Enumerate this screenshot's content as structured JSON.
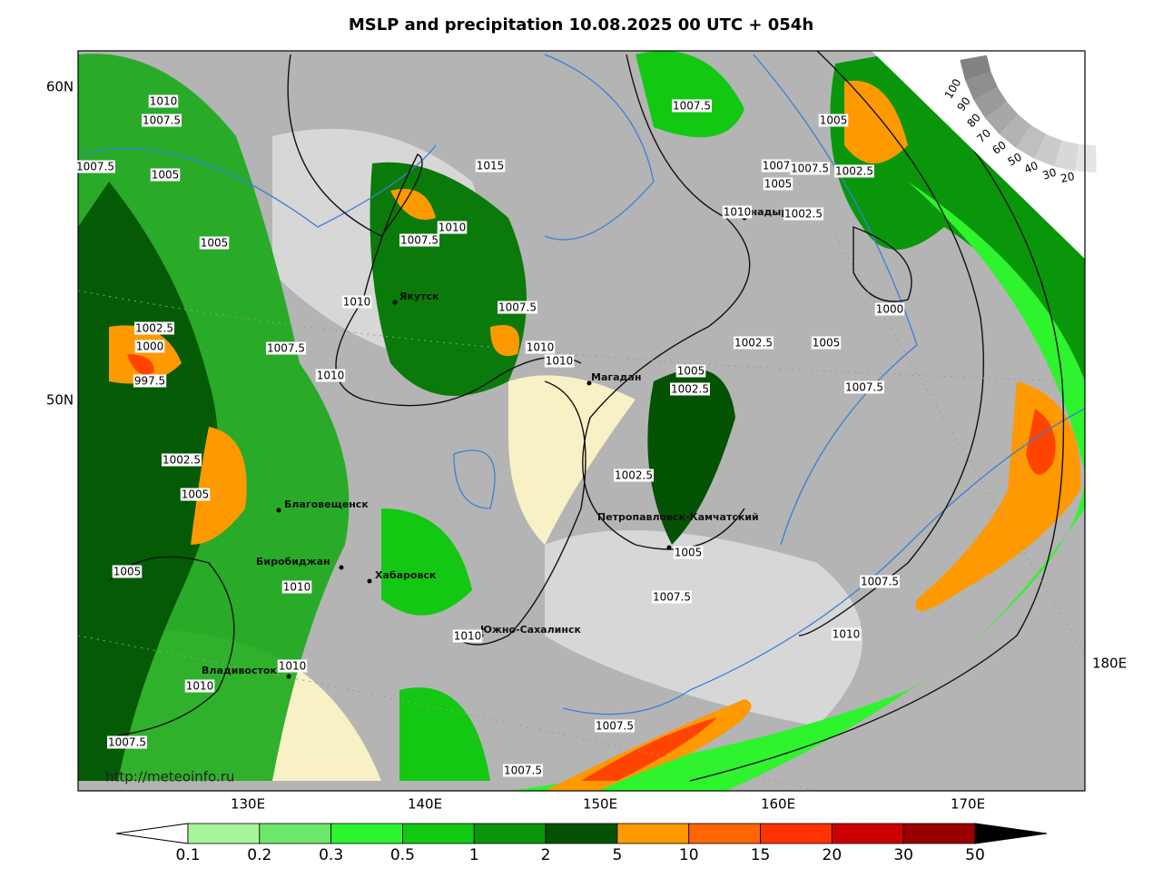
{
  "title": "MSLP and precipitation 10.08.2025 00 UTC + 054h",
  "lat_labels": [
    "60N",
    "50N"
  ],
  "lon_labels": [
    "130E",
    "140E",
    "150E",
    "160E",
    "170E",
    "180E"
  ],
  "cities": [
    "Якутск",
    "Магадан",
    "Анадырь",
    "Благовещенск",
    "Биробиджан",
    "Хабаровск",
    "Владивосток",
    "Южно-Сахалинск",
    "Петропавловск-Камчатский"
  ],
  "isobar_labels": [
    1010,
    1007.5,
    1007.5,
    1005,
    1005,
    1010,
    1002.5,
    1000,
    997.5,
    1007.5,
    1010,
    1002.5,
    1005,
    1005,
    1010,
    1010,
    1010,
    1007.5,
    1015,
    1010,
    1007.5,
    1007.5,
    1010,
    1010,
    1007.5,
    1005,
    1007,
    1007.5,
    1002.5,
    1005,
    1010,
    1002.5,
    1000,
    1002.5,
    1005,
    1007.5,
    1005,
    1002.5,
    1002.5,
    1005,
    1007.5,
    1007.5,
    1010,
    1010,
    1007.5,
    1007.5
  ],
  "cloud_scale": [
    100,
    90,
    80,
    70,
    60,
    50,
    40,
    30,
    20
  ],
  "credit": "http://meteoinfo.ru",
  "legend": {
    "levels": [
      0.1,
      0.2,
      0.3,
      0.5,
      1,
      2,
      5,
      10,
      15,
      20,
      30,
      50
    ],
    "colors": [
      "#a6f59a",
      "#6ee86a",
      "#2ef42e",
      "#12c812",
      "#0a960a",
      "#045204",
      "#ff9900",
      "#ff6600",
      "#ff3300",
      "#cc0000",
      "#990000"
    ],
    "under_color": "#ffffff",
    "over_color": "#000000"
  }
}
